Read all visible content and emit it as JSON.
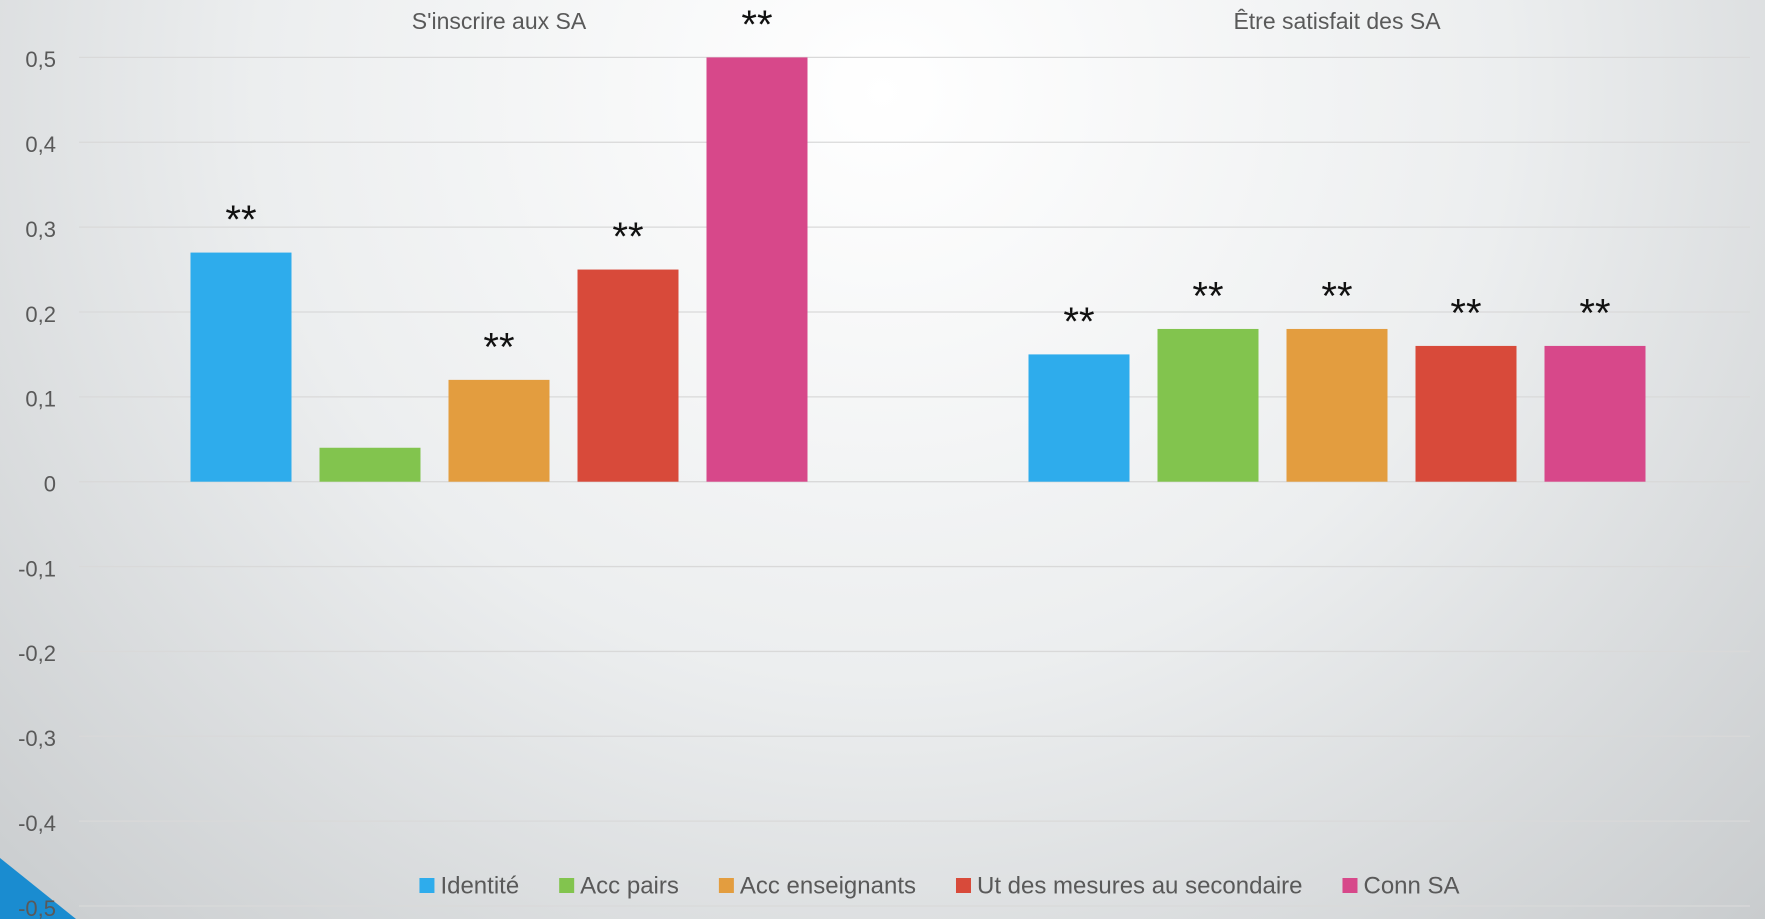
{
  "chart_data": {
    "type": "bar",
    "categories": [
      "S'inscrire aux SA",
      "Être satisfait des SA"
    ],
    "series": [
      {
        "name": "Identité",
        "color": "#2eacec",
        "values": [
          0.27,
          0.15
        ],
        "labels": [
          "**",
          "**"
        ]
      },
      {
        "name": "Acc pairs",
        "color": "#82c44e",
        "values": [
          0.04,
          0.18
        ],
        "labels": [
          null,
          "**"
        ]
      },
      {
        "name": "Acc enseignants",
        "color": "#e39d3f",
        "values": [
          0.12,
          0.18
        ],
        "labels": [
          "**",
          "**"
        ]
      },
      {
        "name": "Ut des mesures au secondaire",
        "color": "#d84a3a",
        "values": [
          0.25,
          0.16
        ],
        "labels": [
          "**",
          "**"
        ]
      },
      {
        "name": "Conn SA",
        "color": "#d7488a",
        "values": [
          0.5,
          0.16
        ],
        "labels": [
          "**",
          "**"
        ]
      }
    ],
    "ylim": [
      -0.5,
      0.5
    ],
    "yticks": [
      {
        "value": -0.5,
        "label": "-0,5"
      },
      {
        "value": -0.4,
        "label": "-0,4"
      },
      {
        "value": -0.3,
        "label": "-0,3"
      },
      {
        "value": -0.2,
        "label": "-0,2"
      },
      {
        "value": -0.1,
        "label": "-0,1"
      },
      0,
      {
        "value": 0.1,
        "label": "0,1"
      },
      {
        "value": 0.2,
        "label": "0,2"
      },
      {
        "value": 0.3,
        "label": "0,3"
      },
      {
        "value": 0.4,
        "label": "0,4"
      },
      {
        "value": 0.5,
        "label": "0,5"
      }
    ],
    "grid": true,
    "legend": "bottom"
  }
}
